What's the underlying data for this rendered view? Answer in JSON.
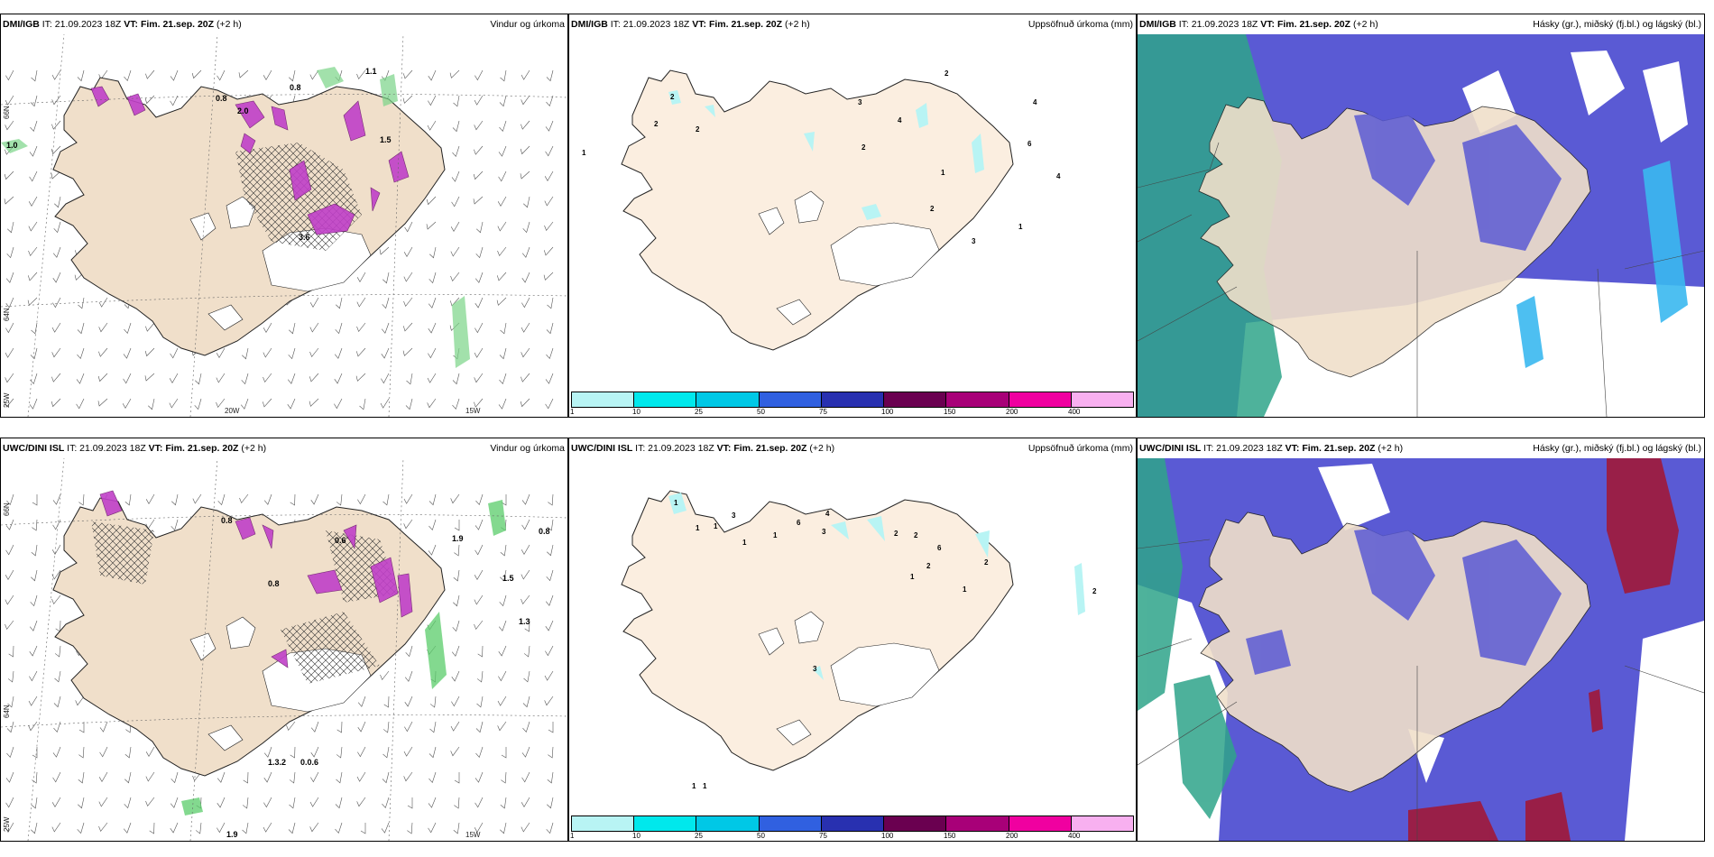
{
  "panels": [
    {
      "model": "DMI/IGB",
      "it": "IT: 21.09.2023 18Z",
      "vt_label": "VT:",
      "vt": "Fim. 21.sep. 20Z",
      "lead": "(+2 h)",
      "title": "Vindur og úrkoma"
    },
    {
      "model": "DMI/IGB",
      "it": "IT: 21.09.2023 18Z",
      "vt_label": "VT:",
      "vt": "Fim. 21.sep. 20Z",
      "lead": "(+2 h)",
      "title": "Uppsöfnuð úrkoma (mm)"
    },
    {
      "model": "DMI/IGB",
      "it": "IT: 21.09.2023 18Z",
      "vt_label": "VT:",
      "vt": "Fim. 21.sep. 20Z",
      "lead": "(+2 h)",
      "title": "Hásky (gr.), miðský (fj.bl.) og lágský (bl.)"
    },
    {
      "model": "UWC/DINI ISL",
      "it": "IT: 21.09.2023 18Z",
      "vt_label": "VT:",
      "vt": "Fim. 21.sep. 20Z",
      "lead": "(+2 h)",
      "title": "Vindur og úrkoma"
    },
    {
      "model": "UWC/DINI ISL",
      "it": "IT: 21.09.2023 18Z",
      "vt_label": "VT:",
      "vt": "Fim. 21.sep. 20Z",
      "lead": "(+2 h)",
      "title": "Uppsöfnuð úrkoma (mm)"
    },
    {
      "model": "UWC/DINI ISL",
      "it": "IT: 21.09.2023 18Z",
      "vt_label": "VT:",
      "vt": "Fim. 21.sep. 20Z",
      "lead": "(+2 h)",
      "title": "Hásky (gr.), miðský (fj.bl.) og lágský (bl.)"
    }
  ],
  "axis_labels": {
    "lat66": "66N",
    "lat64": "64N",
    "lon25": "25W",
    "lon20": "20W",
    "lon15": "15W"
  },
  "colorbar": {
    "labels": [
      "1",
      "10",
      "25",
      "50",
      "75",
      "100",
      "150",
      "200",
      "400"
    ],
    "colors": [
      "#b8f4f4",
      "#00e8ec",
      "#00c8e6",
      "#3060e0",
      "#2830b0",
      "#6a0050",
      "#a80078",
      "#f000a0",
      "#f8b0f0"
    ]
  },
  "precip_labels_top": [
    "1",
    "2",
    "2",
    "3",
    "4",
    "2",
    "2",
    "4",
    "6",
    "4",
    "1",
    "2",
    "3",
    "1",
    "2"
  ],
  "precip_labels_bottom": [
    "1",
    "3",
    "1",
    "1",
    "1",
    "6",
    "4",
    "1",
    "3",
    "2",
    "2",
    "6",
    "2",
    "2",
    "1",
    "1",
    "2",
    "3",
    "1",
    "1"
  ],
  "wind_labels_top": [
    "1.0",
    "0.8",
    "0.8",
    "2.0",
    "1.1",
    "3.6",
    "1.5"
  ],
  "wind_labels_bottom": [
    "0.8",
    "0.6",
    "1.9",
    "0.8",
    "0.8",
    "1.5",
    "1.3",
    "1.3.2",
    "0.0.6",
    "1.9"
  ],
  "colors": {
    "land": "#f0dfca",
    "precip_land": "#fbeee0",
    "high_cloud": "#2fa48a",
    "mid_cloud": "#5a5ad4",
    "low_cloud": "#3ab8f0",
    "mid_red": "#a01838"
  }
}
